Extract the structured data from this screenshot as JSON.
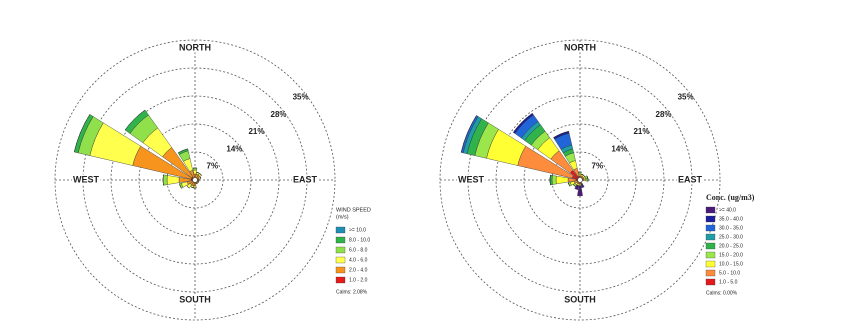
{
  "chart_data": [
    {
      "type": "windrose",
      "compass_labels": [
        "NORTH",
        "EAST",
        "SOUTH",
        "WEST"
      ],
      "rlim": [
        0,
        35
      ],
      "rticks": [
        {
          "value": 7,
          "label": "7%"
        },
        {
          "value": 14,
          "label": "14%"
        },
        {
          "value": 21,
          "label": "21%"
        },
        {
          "value": 28,
          "label": "28%"
        },
        {
          "value": 35,
          "label": "35%"
        }
      ],
      "legend_title": [
        "WIND SPEED",
        "(m/s)"
      ],
      "calms": "Calms: 2.08%",
      "series": [
        {
          "name": "1.0 - 2.0",
          "color": "#e41a1c",
          "values": [
            0.5,
            0.5,
            0.5,
            0.5,
            0.5,
            0.5,
            0.5,
            0.5,
            0.5,
            0.5,
            0.5,
            0.5,
            1,
            1,
            1,
            0.5
          ]
        },
        {
          "name": "2.0 - 4.0",
          "color": "#f7941d",
          "values": [
            1,
            1,
            1,
            0.5,
            0.5,
            0.5,
            0.5,
            0.5,
            1,
            1,
            1,
            1.5,
            3,
            15,
            9,
            2
          ]
        },
        {
          "name": "4.0 - 6.0",
          "color": "#ffff4d",
          "values": [
            1,
            0.5,
            0.5,
            0.5,
            0,
            0,
            0,
            0,
            0.5,
            0.5,
            1,
            1.5,
            3,
            11,
            6,
            3
          ]
        },
        {
          "name": "6.0 - 8.0",
          "color": "#8fe04a",
          "values": [
            0.5,
            0,
            0,
            0,
            0,
            0,
            0,
            0,
            0,
            0,
            0,
            0.5,
            1,
            3,
            4,
            2
          ]
        },
        {
          "name": "8.0 - 10.0",
          "color": "#2fb34a",
          "values": [
            0,
            0,
            0,
            0,
            0,
            0,
            0,
            0,
            0,
            0,
            0,
            0,
            0,
            1,
            1.5,
            0.5
          ]
        },
        {
          "name": ">= 10.0",
          "color": "#1f8fb3",
          "values": [
            0,
            0,
            0,
            0,
            0,
            0,
            0,
            0,
            0,
            0,
            0,
            0,
            0,
            0,
            0,
            0
          ]
        }
      ]
    },
    {
      "type": "windrose",
      "compass_labels": [
        "NORTH",
        "EAST",
        "SOUTH",
        "WEST"
      ],
      "rlim": [
        0,
        35
      ],
      "rticks": [
        {
          "value": 7,
          "label": "7%"
        },
        {
          "value": 14,
          "label": "14%"
        },
        {
          "value": 21,
          "label": "21%"
        },
        {
          "value": 28,
          "label": "28%"
        },
        {
          "value": 35,
          "label": "35%"
        }
      ],
      "legend_title": [
        "Conc. (ug/m3)"
      ],
      "calms": "Calms: 0.00%",
      "series": [
        {
          "name": "1.0 - 5.0",
          "color": "#e31a1c",
          "values": [
            0.5,
            0.5,
            0.5,
            0.5,
            0.5,
            0.5,
            0.5,
            0.5,
            0.5,
            0.5,
            0.5,
            0.5,
            1,
            2,
            3,
            1
          ]
        },
        {
          "name": "5.0 - 10.0",
          "color": "#fd8d3c",
          "values": [
            0.5,
            0.5,
            0.5,
            0.5,
            0.5,
            0,
            0,
            0.5,
            0.5,
            0.5,
            0.5,
            1,
            2,
            14,
            6,
            2
          ]
        },
        {
          "name": "10.0 - 15.0",
          "color": "#ffff33",
          "values": [
            0.5,
            0.5,
            0.5,
            0.5,
            0.5,
            0,
            0,
            0,
            0.5,
            0.5,
            0.5,
            1,
            3,
            8,
            4,
            2
          ]
        },
        {
          "name": "15.0 - 20.0",
          "color": "#9be64b",
          "values": [
            0.5,
            0,
            0,
            0.5,
            0.5,
            0,
            0,
            0,
            0,
            0,
            0.5,
            0.5,
            1,
            3,
            2,
            2
          ]
        },
        {
          "name": "20.0 - 25.0",
          "color": "#2fb34a",
          "values": [
            0,
            0,
            0,
            0,
            0,
            0,
            0,
            0,
            0,
            0,
            0,
            0,
            0.5,
            2,
            2,
            1
          ]
        },
        {
          "name": "25.0 - 30.0",
          "color": "#1f9ea8",
          "values": [
            0,
            0,
            0,
            0,
            0,
            0,
            0,
            0,
            0,
            0,
            0,
            0,
            0,
            1,
            1,
            1
          ]
        },
        {
          "name": "30.0 - 35.0",
          "color": "#2166d9",
          "values": [
            0,
            0,
            0,
            0,
            0,
            0,
            0,
            0,
            0,
            0,
            0,
            0,
            0,
            0.5,
            2,
            3
          ]
        },
        {
          "name": "35.0 - 40.0",
          "color": "#1b1f9e",
          "values": [
            0,
            0,
            0,
            0,
            0,
            0,
            0,
            0,
            0.5,
            0,
            0,
            0,
            0,
            0,
            0.5,
            0.5
          ]
        },
        {
          "name": ">= 40.0",
          "color": "#4b1a7a",
          "values": [
            0,
            0,
            0,
            0,
            0,
            0,
            0,
            1,
            2,
            1,
            0,
            0,
            0,
            0,
            0,
            0
          ]
        }
      ]
    }
  ]
}
